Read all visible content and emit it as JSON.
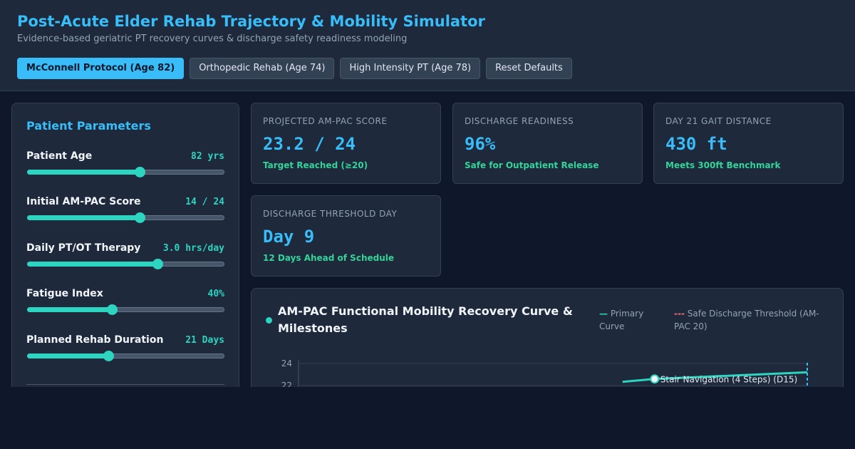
{
  "header": {
    "title": "Post-Acute Elder Rehab Trajectory & Mobility Simulator",
    "subtitle": "Evidence-based geriatric PT recovery curves & discharge safety readiness modeling",
    "presets": [
      {
        "label": "McConnell Protocol (Age 82)",
        "active": true
      },
      {
        "label": "Orthopedic Rehab (Age 74)",
        "active": false
      },
      {
        "label": "High Intensity PT (Age 78)",
        "active": false
      },
      {
        "label": "Reset Defaults",
        "active": false
      }
    ]
  },
  "panel": {
    "title": "Patient Parameters",
    "params": [
      {
        "label": "Patient Age",
        "value": "82 yrs",
        "level": 0.57
      },
      {
        "label": "Initial AM-PAC Score",
        "value": "14 / 24",
        "level": 0.57
      },
      {
        "label": "Daily PT/OT Therapy",
        "value": "3.0 hrs/day",
        "level": 0.66
      },
      {
        "label": "Fatigue Index",
        "value": "40%",
        "level": 0.43
      },
      {
        "label": "Planned Rehab Duration",
        "value": "21 Days",
        "level": 0.41
      }
    ]
  },
  "kpis": [
    {
      "label": "PROJECTED AM-PAC SCORE",
      "value": "23.2 / 24",
      "note": "Target Reached (≥20)"
    },
    {
      "label": "DISCHARGE READINESS",
      "value": "96%",
      "note": "Safe for Outpatient Release"
    },
    {
      "label": "DAY 21 GAIT DISTANCE",
      "value": "430 ft",
      "note": "Meets 300ft Benchmark"
    },
    {
      "label": "DISCHARGE THRESHOLD DAY",
      "value": "Day 9",
      "note": "12 Days Ahead of Schedule"
    }
  ],
  "chart": {
    "title": "AM-PAC Functional Mobility Recovery Curve & Milestones",
    "legend": [
      {
        "symbol": "—",
        "label": "Primary Curve",
        "color": "#2dd4bf"
      },
      {
        "symbol": "---",
        "label": "Safe Discharge Threshold (AM-PAC 20)",
        "color": "#f87171"
      }
    ]
  },
  "chart_data": {
    "type": "line",
    "ylim": [
      0,
      24
    ],
    "yticks": [
      22,
      24
    ],
    "series": [
      {
        "name": "Primary Curve",
        "x": [
          15,
          21
        ],
        "y": [
          22.6,
          23.2
        ]
      }
    ],
    "threshold": {
      "name": "Safe Discharge Threshold (AM-PAC 20)",
      "y": 20
    },
    "annotations": [
      {
        "text": "Stair Navigation (4 Steps) (D15)",
        "x": 15,
        "y": 22.6
      }
    ],
    "marker_day": 21
  },
  "colors": {
    "accent": "#38bdf8",
    "curve": "#2dd4bf",
    "success": "#34d399",
    "threshold": "#f87171"
  }
}
